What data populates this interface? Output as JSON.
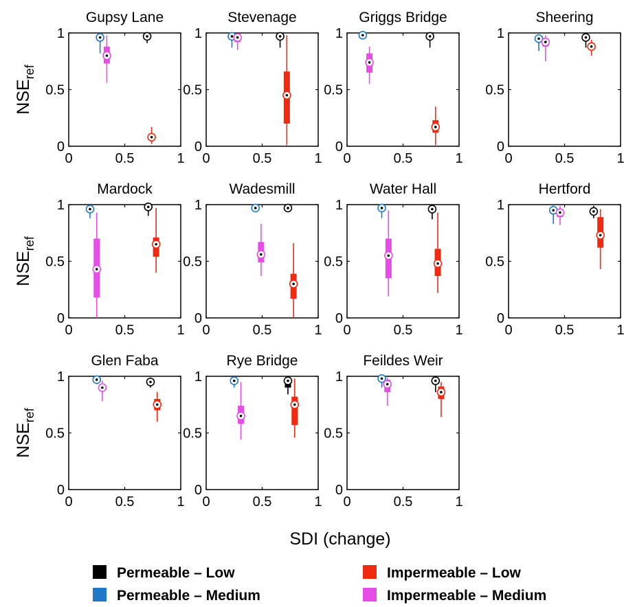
{
  "chart_data": {
    "type": "boxplot",
    "xlabel": "SDI (change)",
    "ylabel_main": "NSE",
    "ylabel_sub": "ref",
    "xlim": [
      0,
      1
    ],
    "ylim": [
      0,
      1
    ],
    "xticks": [
      0,
      0.5,
      1
    ],
    "yticks": [
      0,
      0.5,
      1
    ],
    "xtick_labels": [
      "0",
      "0.5",
      "1"
    ],
    "ytick_labels": [
      "0",
      "0.5",
      "1"
    ],
    "categories": {
      "PL": {
        "label": "Permeable – Low",
        "color": "#000000"
      },
      "PM": {
        "label": "Permeable – Medium",
        "color": "#1f78c8"
      },
      "IL": {
        "label": "Impermeable – Low",
        "color": "#f02a10"
      },
      "IM": {
        "label": "Impermeable – Medium",
        "color": "#e64de6"
      }
    },
    "legend_order": [
      "PL",
      "IL",
      "PM",
      "IM"
    ],
    "panels": [
      {
        "title": "Gupsy Lane",
        "boxes": [
          {
            "cat": "PM",
            "x": 0.28,
            "median": 0.96,
            "q1": 0.93,
            "q3": 0.98,
            "lo": 0.82,
            "hi": 1.0
          },
          {
            "cat": "IM",
            "x": 0.34,
            "median": 0.8,
            "q1": 0.73,
            "q3": 0.88,
            "lo": 0.56,
            "hi": 0.98
          },
          {
            "cat": "PL",
            "x": 0.7,
            "median": 0.97,
            "q1": 0.96,
            "q3": 0.98,
            "lo": 0.91,
            "hi": 0.99
          },
          {
            "cat": "IL",
            "x": 0.74,
            "median": 0.08,
            "q1": 0.06,
            "q3": 0.09,
            "lo": 0.02,
            "hi": 0.17
          }
        ]
      },
      {
        "title": "Stevenage",
        "boxes": [
          {
            "cat": "PM",
            "x": 0.23,
            "median": 0.97,
            "q1": 0.95,
            "q3": 0.98,
            "lo": 0.87,
            "hi": 1.0
          },
          {
            "cat": "IM",
            "x": 0.28,
            "median": 0.96,
            "q1": 0.92,
            "q3": 0.98,
            "lo": 0.85,
            "hi": 0.99
          },
          {
            "cat": "PL",
            "x": 0.66,
            "median": 0.97,
            "q1": 0.96,
            "q3": 0.98,
            "lo": 0.87,
            "hi": 0.99
          },
          {
            "cat": "IL",
            "x": 0.72,
            "median": 0.45,
            "q1": 0.2,
            "q3": 0.66,
            "lo": 0.01,
            "hi": 0.98
          }
        ]
      },
      {
        "title": "Griggs Bridge",
        "boxes": [
          {
            "cat": "PM",
            "x": 0.14,
            "median": 0.98,
            "q1": 0.97,
            "q3": 0.99,
            "lo": 0.95,
            "hi": 1.0
          },
          {
            "cat": "IM",
            "x": 0.2,
            "median": 0.74,
            "q1": 0.65,
            "q3": 0.82,
            "lo": 0.55,
            "hi": 0.88
          },
          {
            "cat": "PL",
            "x": 0.74,
            "median": 0.97,
            "q1": 0.96,
            "q3": 0.98,
            "lo": 0.87,
            "hi": 0.99
          },
          {
            "cat": "IL",
            "x": 0.79,
            "median": 0.17,
            "q1": 0.12,
            "q3": 0.23,
            "lo": 0.01,
            "hi": 0.35
          }
        ]
      },
      {
        "title": "Sheering",
        "boxes": [
          {
            "cat": "PM",
            "x": 0.27,
            "median": 0.95,
            "q1": 0.93,
            "q3": 0.97,
            "lo": 0.84,
            "hi": 0.99
          },
          {
            "cat": "IM",
            "x": 0.33,
            "median": 0.92,
            "q1": 0.88,
            "q3": 0.95,
            "lo": 0.75,
            "hi": 0.98
          },
          {
            "cat": "PL",
            "x": 0.69,
            "median": 0.96,
            "q1": 0.94,
            "q3": 0.97,
            "lo": 0.87,
            "hi": 0.99
          },
          {
            "cat": "IL",
            "x": 0.74,
            "median": 0.88,
            "q1": 0.86,
            "q3": 0.91,
            "lo": 0.8,
            "hi": 0.94
          }
        ]
      },
      {
        "title": "Mardock",
        "boxes": [
          {
            "cat": "PM",
            "x": 0.19,
            "median": 0.96,
            "q1": 0.94,
            "q3": 0.98,
            "lo": 0.88,
            "hi": 1.0
          },
          {
            "cat": "IM",
            "x": 0.25,
            "median": 0.43,
            "q1": 0.18,
            "q3": 0.7,
            "lo": 0.0,
            "hi": 0.93
          },
          {
            "cat": "PL",
            "x": 0.71,
            "median": 0.98,
            "q1": 0.96,
            "q3": 0.99,
            "lo": 0.9,
            "hi": 1.0
          },
          {
            "cat": "IL",
            "x": 0.78,
            "median": 0.65,
            "q1": 0.54,
            "q3": 0.71,
            "lo": 0.4,
            "hi": 0.97
          }
        ]
      },
      {
        "title": "Wadesmill",
        "boxes": [
          {
            "cat": "PM",
            "x": 0.44,
            "median": 0.97,
            "q1": 0.96,
            "q3": 0.98,
            "lo": 0.94,
            "hi": 0.99
          },
          {
            "cat": "IM",
            "x": 0.49,
            "median": 0.56,
            "q1": 0.49,
            "q3": 0.67,
            "lo": 0.37,
            "hi": 0.83
          },
          {
            "cat": "PL",
            "x": 0.73,
            "median": 0.97,
            "q1": 0.96,
            "q3": 0.98,
            "lo": 0.94,
            "hi": 0.99
          },
          {
            "cat": "IL",
            "x": 0.78,
            "median": 0.3,
            "q1": 0.17,
            "q3": 0.39,
            "lo": 0.0,
            "hi": 0.66
          }
        ]
      },
      {
        "title": "Water Hall",
        "boxes": [
          {
            "cat": "PM",
            "x": 0.31,
            "median": 0.97,
            "q1": 0.95,
            "q3": 0.98,
            "lo": 0.88,
            "hi": 1.0
          },
          {
            "cat": "IM",
            "x": 0.37,
            "median": 0.55,
            "q1": 0.35,
            "q3": 0.7,
            "lo": 0.19,
            "hi": 0.95
          },
          {
            "cat": "PL",
            "x": 0.76,
            "median": 0.96,
            "q1": 0.94,
            "q3": 0.97,
            "lo": 0.87,
            "hi": 0.99
          },
          {
            "cat": "IL",
            "x": 0.81,
            "median": 0.48,
            "q1": 0.37,
            "q3": 0.61,
            "lo": 0.22,
            "hi": 0.93
          }
        ]
      },
      {
        "title": "Hertford",
        "boxes": [
          {
            "cat": "PM",
            "x": 0.4,
            "median": 0.95,
            "q1": 0.92,
            "q3": 0.98,
            "lo": 0.83,
            "hi": 1.0
          },
          {
            "cat": "IM",
            "x": 0.46,
            "median": 0.93,
            "q1": 0.89,
            "q3": 0.96,
            "lo": 0.82,
            "hi": 0.99
          },
          {
            "cat": "PL",
            "x": 0.76,
            "median": 0.94,
            "q1": 0.92,
            "q3": 0.96,
            "lo": 0.88,
            "hi": 0.99
          },
          {
            "cat": "IL",
            "x": 0.82,
            "median": 0.73,
            "q1": 0.62,
            "q3": 0.89,
            "lo": 0.43,
            "hi": 0.96
          }
        ]
      },
      {
        "title": "Glen Faba",
        "boxes": [
          {
            "cat": "PM",
            "x": 0.25,
            "median": 0.97,
            "q1": 0.95,
            "q3": 0.98,
            "lo": 0.93,
            "hi": 0.99
          },
          {
            "cat": "IM",
            "x": 0.3,
            "median": 0.9,
            "q1": 0.87,
            "q3": 0.93,
            "lo": 0.78,
            "hi": 0.96
          },
          {
            "cat": "PL",
            "x": 0.73,
            "median": 0.95,
            "q1": 0.93,
            "q3": 0.97,
            "lo": 0.9,
            "hi": 0.99
          },
          {
            "cat": "IL",
            "x": 0.79,
            "median": 0.75,
            "q1": 0.7,
            "q3": 0.8,
            "lo": 0.6,
            "hi": 0.86
          }
        ]
      },
      {
        "title": "Rye Bridge",
        "boxes": [
          {
            "cat": "PM",
            "x": 0.25,
            "median": 0.96,
            "q1": 0.94,
            "q3": 0.98,
            "lo": 0.9,
            "hi": 1.0
          },
          {
            "cat": "IM",
            "x": 0.31,
            "median": 0.65,
            "q1": 0.58,
            "q3": 0.74,
            "lo": 0.44,
            "hi": 0.95
          },
          {
            "cat": "PL",
            "x": 0.73,
            "median": 0.96,
            "q1": 0.9,
            "q3": 0.98,
            "lo": 0.84,
            "hi": 1.0
          },
          {
            "cat": "IL",
            "x": 0.79,
            "median": 0.75,
            "q1": 0.57,
            "q3": 0.82,
            "lo": 0.46,
            "hi": 0.98
          }
        ]
      },
      {
        "title": "Feildes Weir",
        "boxes": [
          {
            "cat": "PM",
            "x": 0.31,
            "median": 0.98,
            "q1": 0.96,
            "q3": 0.99,
            "lo": 0.9,
            "hi": 1.0
          },
          {
            "cat": "IM",
            "x": 0.36,
            "median": 0.93,
            "q1": 0.86,
            "q3": 0.97,
            "lo": 0.74,
            "hi": 0.99
          },
          {
            "cat": "PL",
            "x": 0.79,
            "median": 0.96,
            "q1": 0.93,
            "q3": 0.98,
            "lo": 0.86,
            "hi": 1.0
          },
          {
            "cat": "IL",
            "x": 0.84,
            "median": 0.86,
            "q1": 0.8,
            "q3": 0.91,
            "lo": 0.64,
            "hi": 0.95
          }
        ]
      }
    ]
  }
}
